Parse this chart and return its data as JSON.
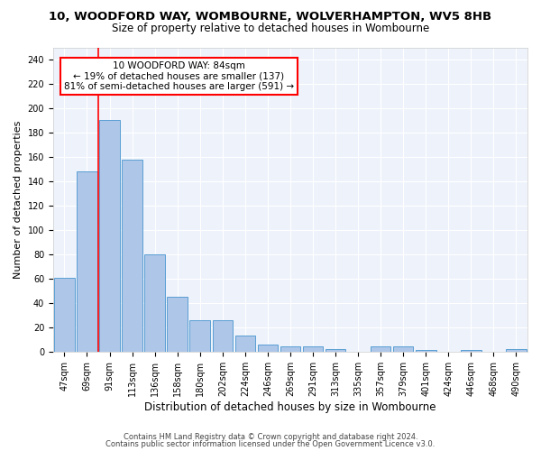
{
  "title": "10, WOODFORD WAY, WOMBOURNE, WOLVERHAMPTON, WV5 8HB",
  "subtitle": "Size of property relative to detached houses in Wombourne",
  "xlabel": "Distribution of detached houses by size in Wombourne",
  "ylabel": "Number of detached properties",
  "categories": [
    "47sqm",
    "69sqm",
    "91sqm",
    "113sqm",
    "136sqm",
    "158sqm",
    "180sqm",
    "202sqm",
    "224sqm",
    "246sqm",
    "269sqm",
    "291sqm",
    "313sqm",
    "335sqm",
    "357sqm",
    "379sqm",
    "401sqm",
    "424sqm",
    "446sqm",
    "468sqm",
    "490sqm"
  ],
  "values": [
    61,
    148,
    190,
    158,
    80,
    45,
    26,
    26,
    13,
    6,
    4,
    4,
    2,
    0,
    4,
    4,
    1,
    0,
    1,
    0,
    2
  ],
  "bar_color": "#aec6e8",
  "bar_edge_color": "#5a9fd4",
  "annotation_text": "10 WOODFORD WAY: 84sqm\n← 19% of detached houses are smaller (137)\n81% of semi-detached houses are larger (591) →",
  "annotation_box_color": "white",
  "annotation_box_edge_color": "red",
  "vline_x": 1.5,
  "vline_color": "red",
  "ylim": [
    0,
    250
  ],
  "yticks": [
    0,
    20,
    40,
    60,
    80,
    100,
    120,
    140,
    160,
    180,
    200,
    220,
    240
  ],
  "background_color": "#eef3fb",
  "footer1": "Contains HM Land Registry data © Crown copyright and database right 2024.",
  "footer2": "Contains public sector information licensed under the Open Government Licence v3.0.",
  "title_fontsize": 9.5,
  "subtitle_fontsize": 8.5,
  "xlabel_fontsize": 8.5,
  "ylabel_fontsize": 8,
  "tick_fontsize": 7,
  "footer_fontsize": 6,
  "annotation_fontsize": 7.5
}
